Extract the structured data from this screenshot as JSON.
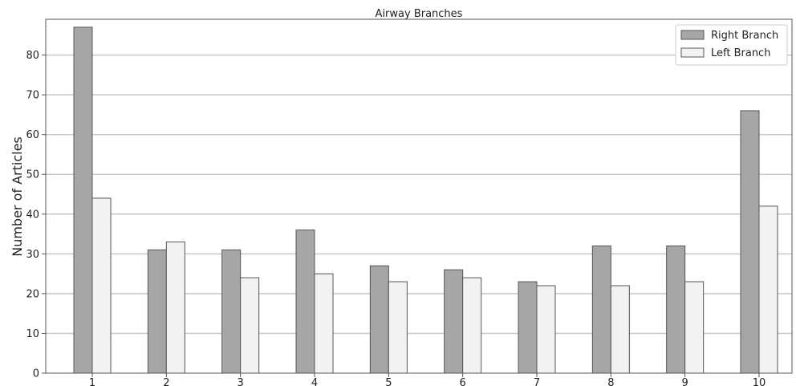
{
  "chart_data": {
    "type": "bar",
    "title": "Airway Branches",
    "xlabel": "",
    "ylabel": "Number of Articles",
    "categories": [
      "1",
      "2",
      "3",
      "4",
      "5",
      "6",
      "7",
      "8",
      "9",
      "10"
    ],
    "series": [
      {
        "name": "Right Branch",
        "values": [
          87,
          31,
          31,
          36,
          27,
          26,
          23,
          32,
          32,
          66
        ],
        "color": "#a6a6a6"
      },
      {
        "name": "Left Branch",
        "values": [
          44,
          33,
          24,
          25,
          23,
          24,
          22,
          22,
          23,
          42
        ],
        "color": "#f2f2f2"
      }
    ],
    "ylim": [
      0,
      89
    ],
    "yticks": [
      0,
      10,
      20,
      30,
      40,
      50,
      60,
      70,
      80
    ],
    "grid": "horizontal",
    "legend_position": "top-right"
  }
}
